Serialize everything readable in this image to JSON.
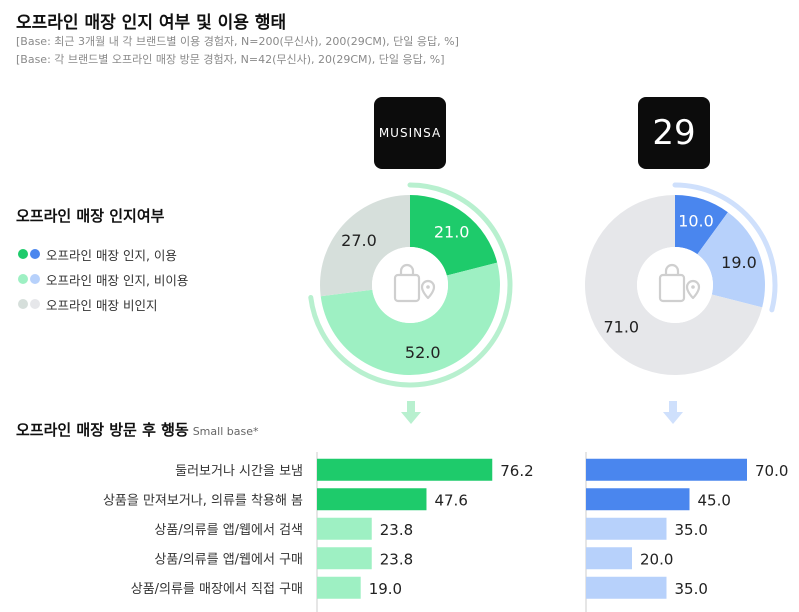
{
  "header": {
    "title": "오프라인 매장 인지 여부 및 이용 행태",
    "base_line1": "[Base: 최근 3개월 내 각 브랜드별 이용 경험자, N=200(무신사), 200(29CM), 단일 응답, %]",
    "base_line2": "[Base: 각 브랜드별 오프라인 매장 방문 경험자, N=42(무신사), 20(29CM), 단일 응답, %]"
  },
  "brands": {
    "musinsa": "MUSINSA",
    "cm29": "29"
  },
  "section1": {
    "title": "오프라인 매장 인지여부"
  },
  "legend": [
    {
      "label": "오프라인 매장 인지, 이용",
      "colors": [
        "#1ecb6b",
        "#4a86ee"
      ]
    },
    {
      "label": "오프라인 매장 인지, 비이용",
      "colors": [
        "#9ef0c3",
        "#b7d1fb"
      ]
    },
    {
      "label": "오프라인 매장 비인지",
      "colors": [
        "#d6dfdb",
        "#e6e7ea"
      ]
    }
  ],
  "section2": {
    "title": "오프라인 매장 방문 후 행동",
    "small_base": "Small base*"
  },
  "chart_data": [
    {
      "type": "pie",
      "name": "MUSINSA",
      "categories": [
        "오프라인 매장 인지, 이용",
        "오프라인 매장 인지, 비이용",
        "오프라인 매장 비인지"
      ],
      "values": [
        21.0,
        52.0,
        27.0
      ],
      "colors": [
        "#1ecb6b",
        "#9ef0c3",
        "#d6dfdb"
      ],
      "ring_color": "#b8f0cf"
    },
    {
      "type": "pie",
      "name": "29",
      "categories": [
        "오프라인 매장 인지, 이용",
        "오프라인 매장 인지, 비이용",
        "오프라인 매장 비인지"
      ],
      "values": [
        10.0,
        19.0,
        71.0
      ],
      "colors": [
        "#4a86ee",
        "#b7d1fb",
        "#e6e7ea"
      ],
      "ring_color": "#cfe0fc"
    },
    {
      "type": "bar",
      "orientation": "horizontal",
      "categories": [
        "둘러보거나 시간을 보냄",
        "상품을 만져보거나, 의류를 착용해 봄",
        "상품/의류를 앱/웹에서 검색",
        "상품/의류를 앱/웹에서 구매",
        "상품/의류를 매장에서 직접 구매"
      ],
      "series": [
        {
          "name": "MUSINSA",
          "values": [
            76.2,
            47.6,
            23.8,
            23.8,
            19.0
          ],
          "colors": [
            "#1ecb6b",
            "#1ecb6b",
            "#9ef0c3",
            "#9ef0c3",
            "#9ef0c3"
          ]
        },
        {
          "name": "29",
          "values": [
            70.0,
            45.0,
            35.0,
            20.0,
            35.0
          ],
          "colors": [
            "#4a86ee",
            "#4a86ee",
            "#b7d1fb",
            "#b7d1fb",
            "#b7d1fb"
          ]
        }
      ]
    }
  ]
}
